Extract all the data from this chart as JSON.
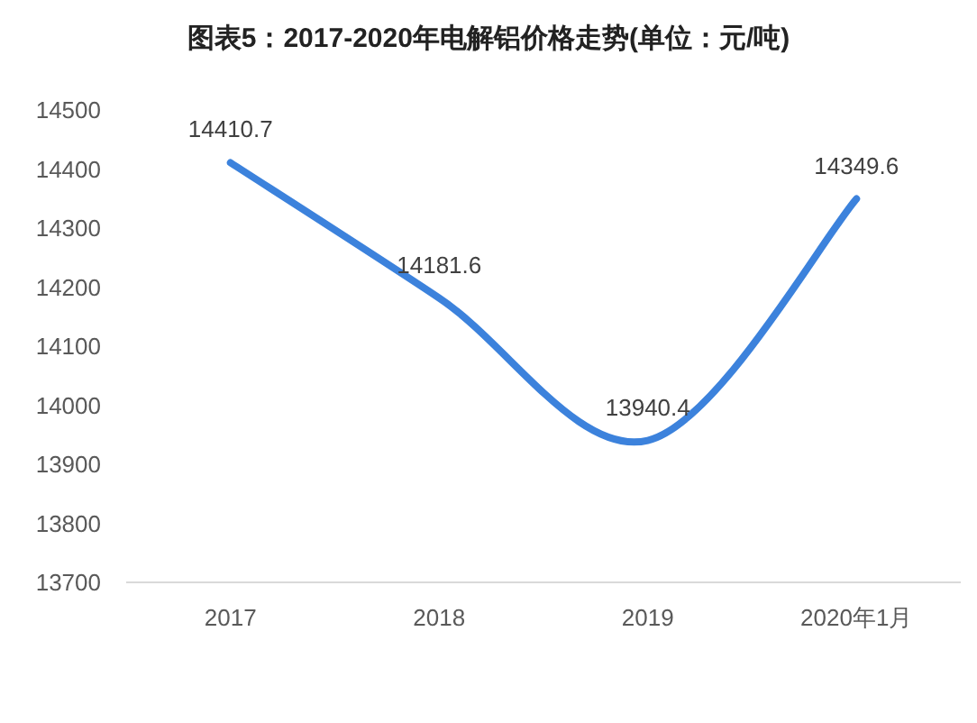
{
  "chart_data": {
    "type": "line",
    "title": "图表5：2017-2020年电解铝价格走势(单位：元/吨)",
    "categories": [
      "2017",
      "2018",
      "2019",
      "2020年1月"
    ],
    "series": [
      {
        "color": "#3c82dc",
        "values": [
          14410.7,
          14181.6,
          13940.4,
          14349.6
        ]
      }
    ],
    "ylim": [
      13700,
      14500
    ],
    "yticks": [
      13700,
      13800,
      13900,
      14000,
      14100,
      14200,
      14300,
      14400,
      14500
    ],
    "data_labels": true
  }
}
